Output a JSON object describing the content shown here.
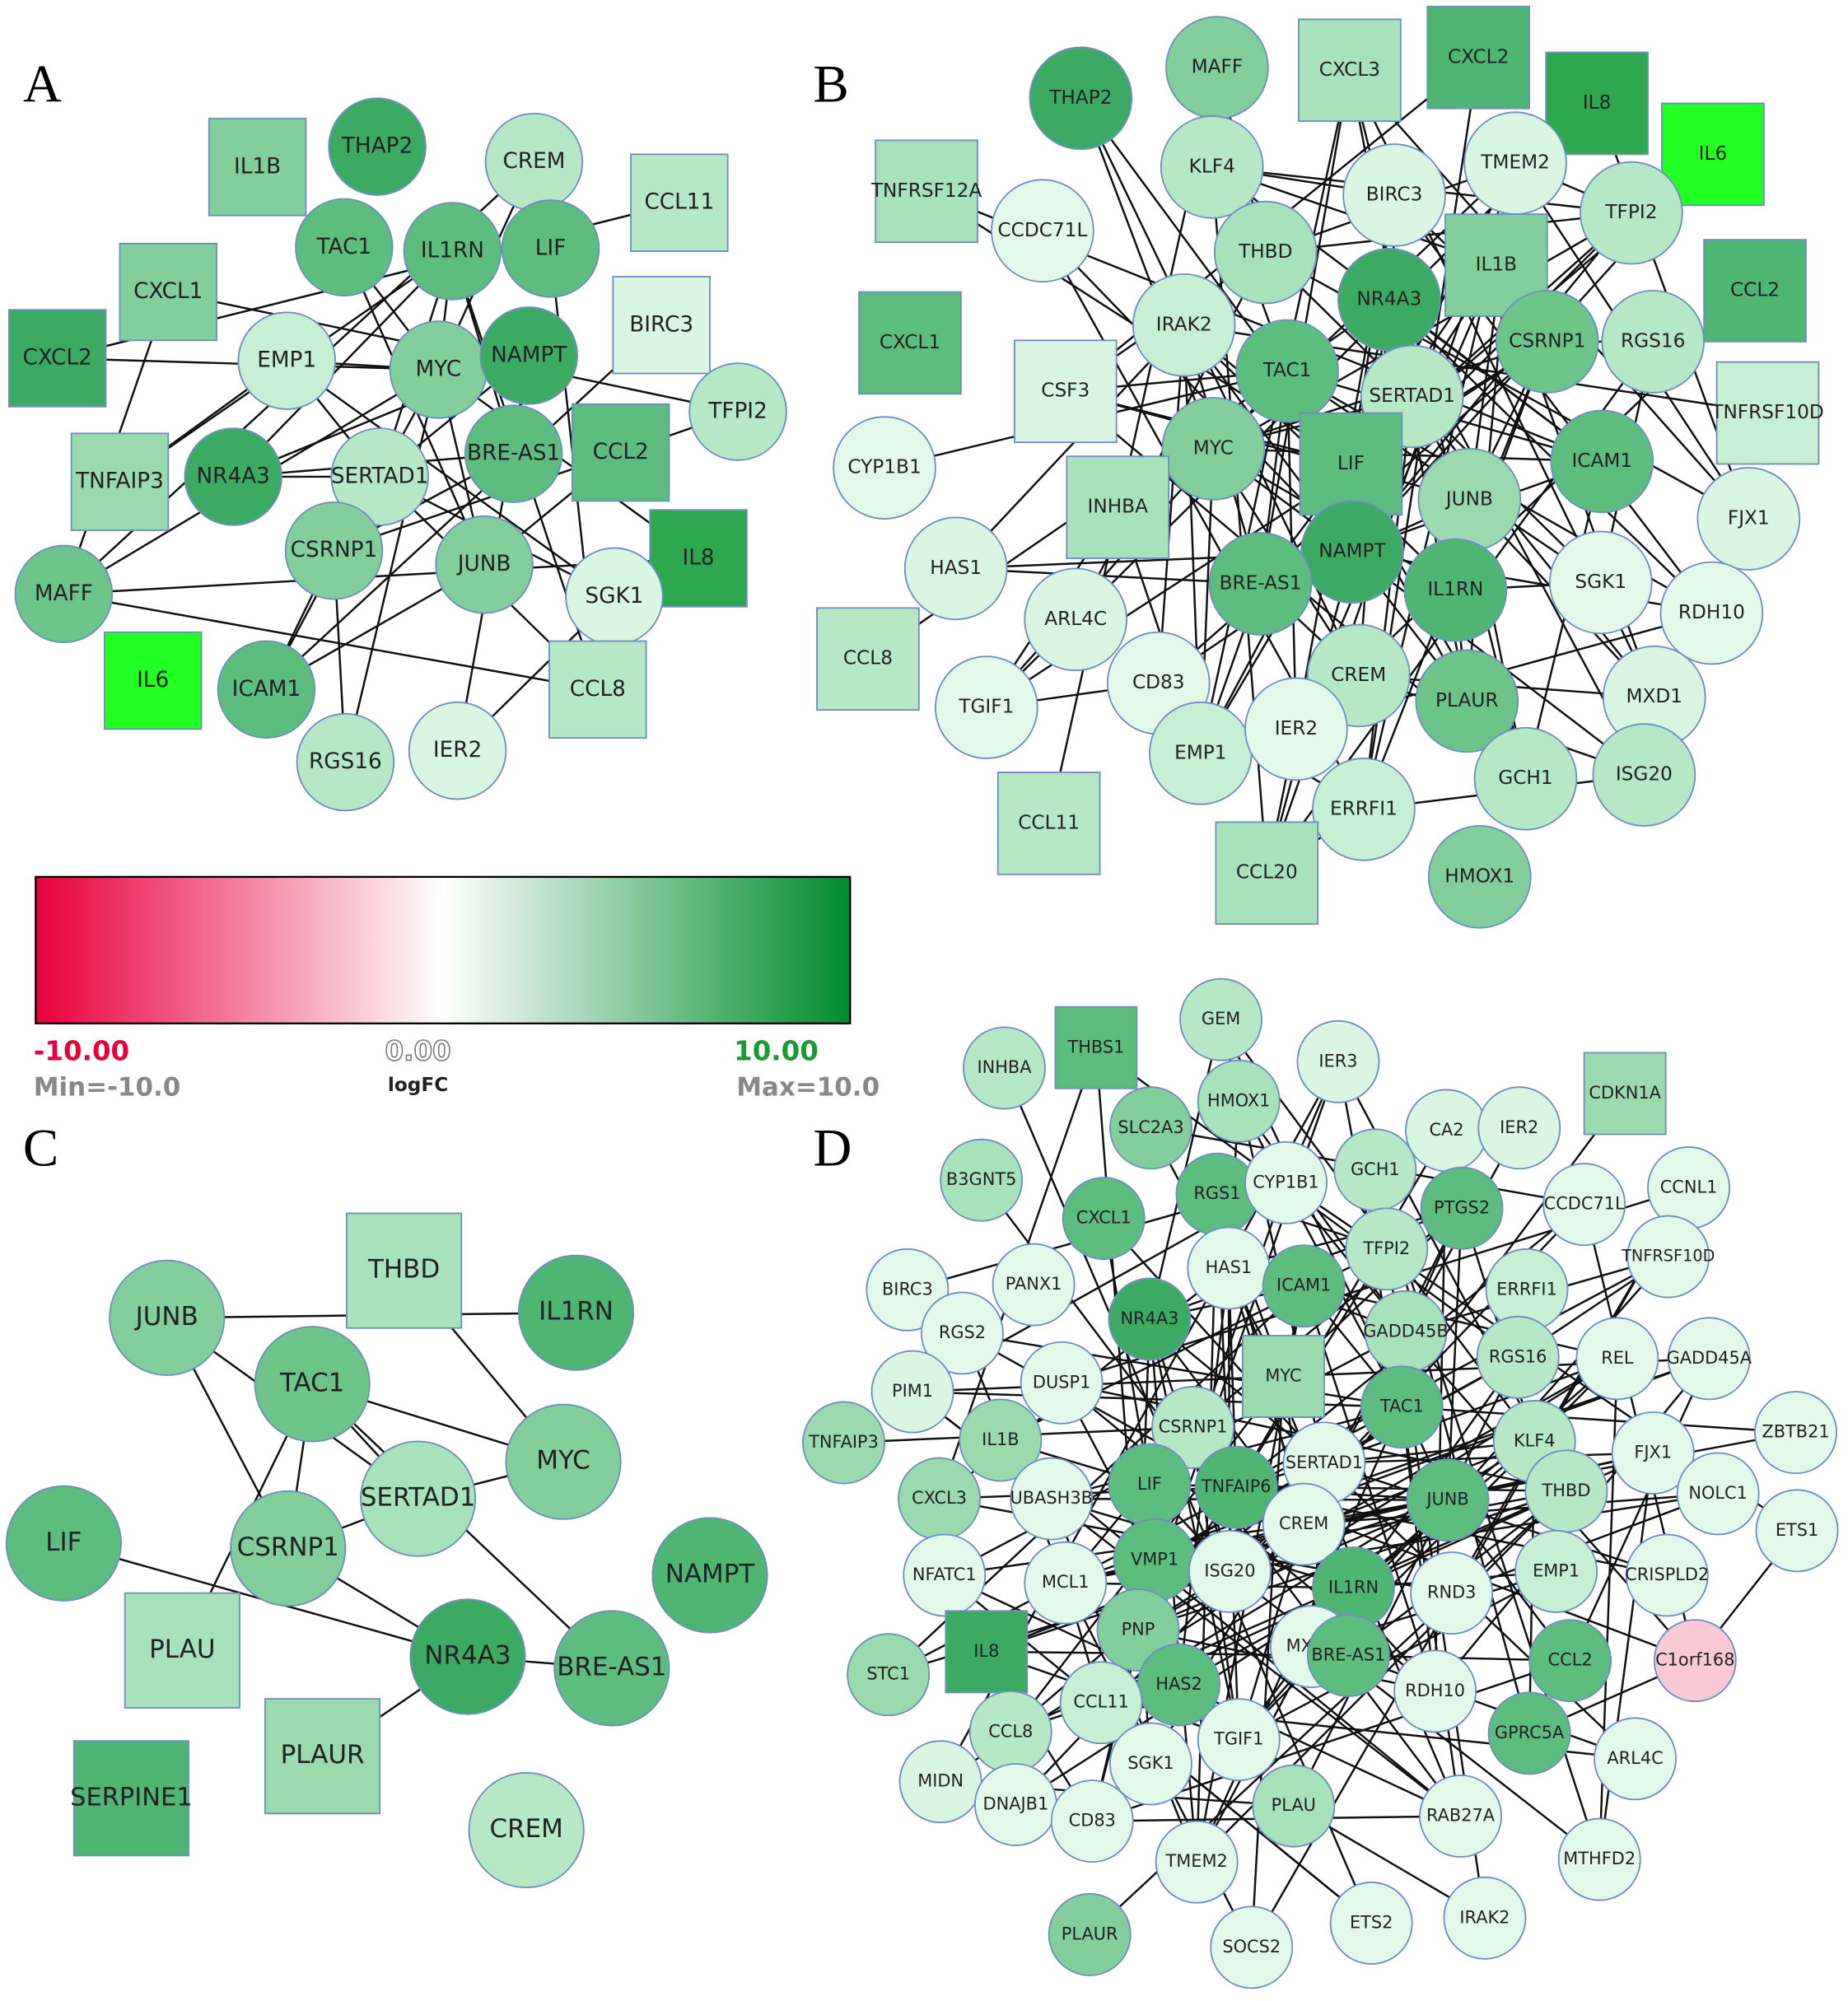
{
  "panels": [
    {
      "label": "A",
      "nodes": [
        {
          "label": "IL1B",
          "shape": "square",
          "color": "#82cf9b"
        },
        {
          "label": "THAP2",
          "shape": "circle",
          "color": "#3daa63"
        },
        {
          "label": "CREM",
          "shape": "circle",
          "color": "#b6e8c6"
        },
        {
          "label": "CCL11",
          "shape": "square",
          "color": "#b6e8c6"
        },
        {
          "label": "CXCL1",
          "shape": "square",
          "color": "#82cf9b"
        },
        {
          "label": "TAC1",
          "shape": "circle",
          "color": "#5dbd7e"
        },
        {
          "label": "IL1RN",
          "shape": "circle",
          "color": "#5dbd7e"
        },
        {
          "label": "LIF",
          "shape": "circle",
          "color": "#5dbd7e"
        },
        {
          "label": "BIRC3",
          "shape": "square",
          "color": "#d8f6e2"
        },
        {
          "label": "CXCL2",
          "shape": "square",
          "color": "#3daa63"
        },
        {
          "label": "EMP1",
          "shape": "circle",
          "color": "#c6efd3"
        },
        {
          "label": "MYC",
          "shape": "circle",
          "color": "#82cf9b"
        },
        {
          "label": "NAMPT",
          "shape": "circle",
          "color": "#3daa63"
        },
        {
          "label": "TFPI2",
          "shape": "circle",
          "color": "#b6e8c6"
        },
        {
          "label": "TNFAIP3",
          "shape": "square",
          "color": "#9adaad"
        },
        {
          "label": "NR4A3",
          "shape": "circle",
          "color": "#3daa63"
        },
        {
          "label": "SERTAD1",
          "shape": "circle",
          "color": "#b6e8c6"
        },
        {
          "label": "BRE-AS1",
          "shape": "circle",
          "color": "#5dbd7e"
        },
        {
          "label": "CCL2",
          "shape": "square",
          "color": "#5dbd7e"
        },
        {
          "label": "CSRNP1",
          "shape": "circle",
          "color": "#82cf9b"
        },
        {
          "label": "JUNB",
          "shape": "circle",
          "color": "#82cf9b"
        },
        {
          "label": "IL8",
          "shape": "square",
          "color": "#2ea84f"
        },
        {
          "label": "MAFF",
          "shape": "circle",
          "color": "#6cc489"
        },
        {
          "label": "SGK1",
          "shape": "circle",
          "color": "#d8f6e2"
        },
        {
          "label": "IL6",
          "shape": "square",
          "color": "#22ff22"
        },
        {
          "label": "ICAM1",
          "shape": "circle",
          "color": "#5dbd7e"
        },
        {
          "label": "CCL8",
          "shape": "square",
          "color": "#b6e8c6"
        },
        {
          "label": "RGS16",
          "shape": "circle",
          "color": "#b6e8c6"
        },
        {
          "label": "IER2",
          "shape": "circle",
          "color": "#d8f6e2"
        }
      ]
    },
    {
      "label": "B",
      "nodes": [
        {
          "label": "MAFF",
          "shape": "circle",
          "color": "#82cf9b"
        },
        {
          "label": "CXCL3",
          "shape": "square",
          "color": "#a8e2bb"
        },
        {
          "label": "CXCL2",
          "shape": "square",
          "color": "#4fb573"
        },
        {
          "label": "IL8",
          "shape": "square",
          "color": "#2ea84f"
        },
        {
          "label": "IL6",
          "shape": "square",
          "color": "#22ff22"
        },
        {
          "label": "THAP2",
          "shape": "circle",
          "color": "#3daa63"
        },
        {
          "label": "KLF4",
          "shape": "circle",
          "color": "#b6e8c6"
        },
        {
          "label": "TMEM2",
          "shape": "circle",
          "color": "#d8f6e2"
        },
        {
          "label": "TNFRSF12A",
          "shape": "square",
          "color": "#a8e2bb"
        },
        {
          "label": "BIRC3",
          "shape": "circle",
          "color": "#d8f6e2"
        },
        {
          "label": "TFPI2",
          "shape": "circle",
          "color": "#b6e8c6"
        },
        {
          "label": "CCDC71L",
          "shape": "circle",
          "color": "#e2f9ea"
        },
        {
          "label": "THBD",
          "shape": "circle",
          "color": "#a8e2bb"
        },
        {
          "label": "IL1B",
          "shape": "square",
          "color": "#82cf9b"
        },
        {
          "label": "NR4A3",
          "shape": "circle",
          "color": "#3daa63"
        },
        {
          "label": "CCL2",
          "shape": "square",
          "color": "#4fb573"
        },
        {
          "label": "CXCL1",
          "shape": "square",
          "color": "#5dbd7e"
        },
        {
          "label": "IRAK2",
          "shape": "circle",
          "color": "#c6efd3"
        },
        {
          "label": "CSRNP1",
          "shape": "circle",
          "color": "#6cc489"
        },
        {
          "label": "RGS16",
          "shape": "circle",
          "color": "#b6e8c6"
        },
        {
          "label": "TAC1",
          "shape": "circle",
          "color": "#5dbd7e"
        },
        {
          "label": "CSF3",
          "shape": "square",
          "color": "#d8f6e2"
        },
        {
          "label": "SERTAD1",
          "shape": "circle",
          "color": "#b6e8c6"
        },
        {
          "label": "TNFRSF10D",
          "shape": "square",
          "color": "#c6efd3"
        },
        {
          "label": "MYC",
          "shape": "circle",
          "color": "#82cf9b"
        },
        {
          "label": "LIF",
          "shape": "square",
          "color": "#5dbd7e"
        },
        {
          "label": "ICAM1",
          "shape": "circle",
          "color": "#5dbd7e"
        },
        {
          "label": "CYP1B1",
          "shape": "circle",
          "color": "#e2f9ea"
        },
        {
          "label": "INHBA",
          "shape": "square",
          "color": "#a8e2bb"
        },
        {
          "label": "JUNB",
          "shape": "circle",
          "color": "#9adaad"
        },
        {
          "label": "FJX1",
          "shape": "circle",
          "color": "#d8f6e2"
        },
        {
          "label": "HAS1",
          "shape": "circle",
          "color": "#d8f6e2"
        },
        {
          "label": "NAMPT",
          "shape": "circle",
          "color": "#3daa63"
        },
        {
          "label": "BRE-AS1",
          "shape": "circle",
          "color": "#5dbd7e"
        },
        {
          "label": "IL1RN",
          "shape": "circle",
          "color": "#4fb573"
        },
        {
          "label": "SGK1",
          "shape": "circle",
          "color": "#e2f9ea"
        },
        {
          "label": "RDH10",
          "shape": "circle",
          "color": "#e2f9ea"
        },
        {
          "label": "ARL4C",
          "shape": "circle",
          "color": "#d8f6e2"
        },
        {
          "label": "CCL8",
          "shape": "square",
          "color": "#b6e8c6"
        },
        {
          "label": "CD83",
          "shape": "circle",
          "color": "#e2f9ea"
        },
        {
          "label": "CREM",
          "shape": "circle",
          "color": "#b6e8c6"
        },
        {
          "label": "PLAUR",
          "shape": "circle",
          "color": "#6cc489"
        },
        {
          "label": "MXD1",
          "shape": "circle",
          "color": "#d8f6e2"
        },
        {
          "label": "TGIF1",
          "shape": "circle",
          "color": "#e2f9ea"
        },
        {
          "label": "EMP1",
          "shape": "circle",
          "color": "#c6efd3"
        },
        {
          "label": "IER2",
          "shape": "circle",
          "color": "#e2f9ea"
        },
        {
          "label": "GCH1",
          "shape": "circle",
          "color": "#b6e8c6"
        },
        {
          "label": "ISG20",
          "shape": "circle",
          "color": "#b6e8c6"
        },
        {
          "label": "CCL11",
          "shape": "square",
          "color": "#b6e8c6"
        },
        {
          "label": "ERRFI1",
          "shape": "circle",
          "color": "#c6efd3"
        },
        {
          "label": "CCL20",
          "shape": "square",
          "color": "#a8e2bb"
        },
        {
          "label": "HMOX1",
          "shape": "circle",
          "color": "#82cf9b"
        }
      ]
    },
    {
      "label": "C",
      "nodes": [
        {
          "label": "THBD",
          "shape": "square",
          "color": "#a8e2bb"
        },
        {
          "label": "JUNB",
          "shape": "circle",
          "color": "#82cf9b"
        },
        {
          "label": "IL1RN",
          "shape": "circle",
          "color": "#4fb573"
        },
        {
          "label": "TAC1",
          "shape": "circle",
          "color": "#6cc489"
        },
        {
          "label": "MYC",
          "shape": "circle",
          "color": "#82cf9b"
        },
        {
          "label": "SERTAD1",
          "shape": "circle",
          "color": "#a8e2bb"
        },
        {
          "label": "LIF",
          "shape": "circle",
          "color": "#5dbd7e"
        },
        {
          "label": "CSRNP1",
          "shape": "circle",
          "color": "#82cf9b"
        },
        {
          "label": "NAMPT",
          "shape": "circle",
          "color": "#4fb573"
        },
        {
          "label": "PLAU",
          "shape": "square",
          "color": "#a8e2bb"
        },
        {
          "label": "NR4A3",
          "shape": "circle",
          "color": "#3daa63"
        },
        {
          "label": "BRE-AS1",
          "shape": "circle",
          "color": "#5dbd7e"
        },
        {
          "label": "PLAUR",
          "shape": "square",
          "color": "#9adaad"
        },
        {
          "label": "SERPINE1",
          "shape": "square",
          "color": "#4fb573"
        },
        {
          "label": "CREM",
          "shape": "circle",
          "color": "#b6e8c6"
        }
      ]
    },
    {
      "label": "D",
      "nodes": [
        {
          "label": "GEM",
          "shape": "circle",
          "color": "#b6e8c6"
        },
        {
          "label": "THBS1",
          "shape": "square",
          "color": "#5dbd7e"
        },
        {
          "label": "INHBA",
          "shape": "circle",
          "color": "#b6e8c6"
        },
        {
          "label": "IER3",
          "shape": "circle",
          "color": "#d8f6e2"
        },
        {
          "label": "CDKN1A",
          "shape": "square",
          "color": "#9adaad"
        },
        {
          "label": "HMOX1",
          "shape": "circle",
          "color": "#a8e2bb"
        },
        {
          "label": "SLC2A3",
          "shape": "circle",
          "color": "#82cf9b"
        },
        {
          "label": "CA2",
          "shape": "circle",
          "color": "#d8f6e2"
        },
        {
          "label": "IER2",
          "shape": "circle",
          "color": "#d8f6e2"
        },
        {
          "label": "B3GNT5",
          "shape": "circle",
          "color": "#a8e2bb"
        },
        {
          "label": "RGS1",
          "shape": "circle",
          "color": "#5dbd7e"
        },
        {
          "label": "CYP1B1",
          "shape": "circle",
          "color": "#e2f9ea"
        },
        {
          "label": "GCH1",
          "shape": "circle",
          "color": "#b6e8c6"
        },
        {
          "label": "PTGS2",
          "shape": "circle",
          "color": "#5dbd7e"
        },
        {
          "label": "CCDC71L",
          "shape": "circle",
          "color": "#e2f9ea"
        },
        {
          "label": "CCNL1",
          "shape": "circle",
          "color": "#e2f9ea"
        },
        {
          "label": "CXCL1",
          "shape": "circle",
          "color": "#5dbd7e"
        },
        {
          "label": "TFPI2",
          "shape": "circle",
          "color": "#b6e8c6"
        },
        {
          "label": "TNFRSF10D",
          "shape": "circle",
          "color": "#e2f9ea"
        },
        {
          "label": "HAS1",
          "shape": "circle",
          "color": "#e2f9ea"
        },
        {
          "label": "BIRC3",
          "shape": "circle",
          "color": "#e2f9ea"
        },
        {
          "label": "PANX1",
          "shape": "circle",
          "color": "#e2f9ea"
        },
        {
          "label": "ICAM1",
          "shape": "circle",
          "color": "#5dbd7e"
        },
        {
          "label": "ERRFI1",
          "shape": "circle",
          "color": "#c6efd3"
        },
        {
          "label": "NR4A3",
          "shape": "circle",
          "color": "#3daa63"
        },
        {
          "label": "GADD45B",
          "shape": "circle",
          "color": "#a8e2bb"
        },
        {
          "label": "RGS2",
          "shape": "circle",
          "color": "#e2f9ea"
        },
        {
          "label": "MYC",
          "shape": "square",
          "color": "#9adaad"
        },
        {
          "label": "RGS16",
          "shape": "circle",
          "color": "#b6e8c6"
        },
        {
          "label": "REL",
          "shape": "circle",
          "color": "#e2f9ea"
        },
        {
          "label": "GADD45A",
          "shape": "circle",
          "color": "#e2f9ea"
        },
        {
          "label": "PIM1",
          "shape": "circle",
          "color": "#d8f6e2"
        },
        {
          "label": "DUSP1",
          "shape": "circle",
          "color": "#e2f9ea"
        },
        {
          "label": "TAC1",
          "shape": "circle",
          "color": "#5dbd7e"
        },
        {
          "label": "TNFAIP3",
          "shape": "circle",
          "color": "#9adaad"
        },
        {
          "label": "IL1B",
          "shape": "circle",
          "color": "#9adaad"
        },
        {
          "label": "CSRNP1",
          "shape": "circle",
          "color": "#b6e8c6"
        },
        {
          "label": "SERTAD1",
          "shape": "circle",
          "color": "#e2f9ea"
        },
        {
          "label": "KLF4",
          "shape": "circle",
          "color": "#b6e8c6"
        },
        {
          "label": "FJX1",
          "shape": "circle",
          "color": "#e2f9ea"
        },
        {
          "label": "ZBTB21",
          "shape": "circle",
          "color": "#e2f9ea"
        },
        {
          "label": "LIF",
          "shape": "circle",
          "color": "#5dbd7e"
        },
        {
          "label": "TNFAIP6",
          "shape": "circle",
          "color": "#4fb573"
        },
        {
          "label": "JUNB",
          "shape": "circle",
          "color": "#5dbd7e"
        },
        {
          "label": "CXCL3",
          "shape": "circle",
          "color": "#9adaad"
        },
        {
          "label": "UBASH3B",
          "shape": "circle",
          "color": "#e2f9ea"
        },
        {
          "label": "THBD",
          "shape": "circle",
          "color": "#b6e8c6"
        },
        {
          "label": "NOLC1",
          "shape": "circle",
          "color": "#e2f9ea"
        },
        {
          "label": "CREM",
          "shape": "circle",
          "color": "#e2f9ea"
        },
        {
          "label": "ETS1",
          "shape": "circle",
          "color": "#e2f9ea"
        },
        {
          "label": "NFATC1",
          "shape": "circle",
          "color": "#e2f9ea"
        },
        {
          "label": "MCL1",
          "shape": "circle",
          "color": "#e2f9ea"
        },
        {
          "label": "VMP1",
          "shape": "circle",
          "color": "#5dbd7e"
        },
        {
          "label": "ISG20",
          "shape": "circle",
          "color": "#e2f9ea"
        },
        {
          "label": "EMP1",
          "shape": "circle",
          "color": "#c6efd3"
        },
        {
          "label": "CRISPLD2",
          "shape": "circle",
          "color": "#e2f9ea"
        },
        {
          "label": "IL1RN",
          "shape": "circle",
          "color": "#4fb573"
        },
        {
          "label": "RND3",
          "shape": "circle",
          "color": "#e2f9ea"
        },
        {
          "label": "STC1",
          "shape": "circle",
          "color": "#9adaad"
        },
        {
          "label": "IL8",
          "shape": "square",
          "color": "#3daa63"
        },
        {
          "label": "PNP",
          "shape": "circle",
          "color": "#82cf9b"
        },
        {
          "label": "MXD1",
          "shape": "circle",
          "color": "#e2f9ea"
        },
        {
          "label": "BRE-AS1",
          "shape": "circle",
          "color": "#5dbd7e"
        },
        {
          "label": "CCL2",
          "shape": "circle",
          "color": "#5dbd7e"
        },
        {
          "label": "C1orf168",
          "shape": "circle",
          "color": "#f9c9d6"
        },
        {
          "label": "HAS2",
          "shape": "circle",
          "color": "#5dbd7e"
        },
        {
          "label": "CCL11",
          "shape": "circle",
          "color": "#c6efd3"
        },
        {
          "label": "RDH10",
          "shape": "circle",
          "color": "#e2f9ea"
        },
        {
          "label": "CCL8",
          "shape": "circle",
          "color": "#b6e8c6"
        },
        {
          "label": "TGIF1",
          "shape": "circle",
          "color": "#e2f9ea"
        },
        {
          "label": "GPRC5A",
          "shape": "circle",
          "color": "#5dbd7e"
        },
        {
          "label": "ARL4C",
          "shape": "circle",
          "color": "#e2f9ea"
        },
        {
          "label": "SGK1",
          "shape": "circle",
          "color": "#e2f9ea"
        },
        {
          "label": "MIDN",
          "shape": "circle",
          "color": "#d8f6e2"
        },
        {
          "label": "DNAJB1",
          "shape": "circle",
          "color": "#e2f9ea"
        },
        {
          "label": "CD83",
          "shape": "circle",
          "color": "#e2f9ea"
        },
        {
          "label": "PLAU",
          "shape": "circle",
          "color": "#a8e2bb"
        },
        {
          "label": "RAB27A",
          "shape": "circle",
          "color": "#e2f9ea"
        },
        {
          "label": "MTHFD2",
          "shape": "circle",
          "color": "#e2f9ea"
        },
        {
          "label": "TMEM2",
          "shape": "circle",
          "color": "#e2f9ea"
        },
        {
          "label": "PLAUR",
          "shape": "circle",
          "color": "#82cf9b"
        },
        {
          "label": "SOCS2",
          "shape": "circle",
          "color": "#e2f9ea"
        },
        {
          "label": "ETS2",
          "shape": "circle",
          "color": "#e2f9ea"
        },
        {
          "label": "IRAK2",
          "shape": "circle",
          "color": "#e2f9ea"
        }
      ]
    }
  ],
  "legend": {
    "gradient": [
      "#e8003a",
      "#ffffff",
      "#008c2d"
    ],
    "min_label": "-10.00",
    "mid_label": "0.00",
    "max_label": "10.00",
    "min_text": "Min=-10.0",
    "title": "logFC",
    "max_text": "Max=10.0",
    "min_color": "#e8003a",
    "max_color": "#1a9a30"
  }
}
